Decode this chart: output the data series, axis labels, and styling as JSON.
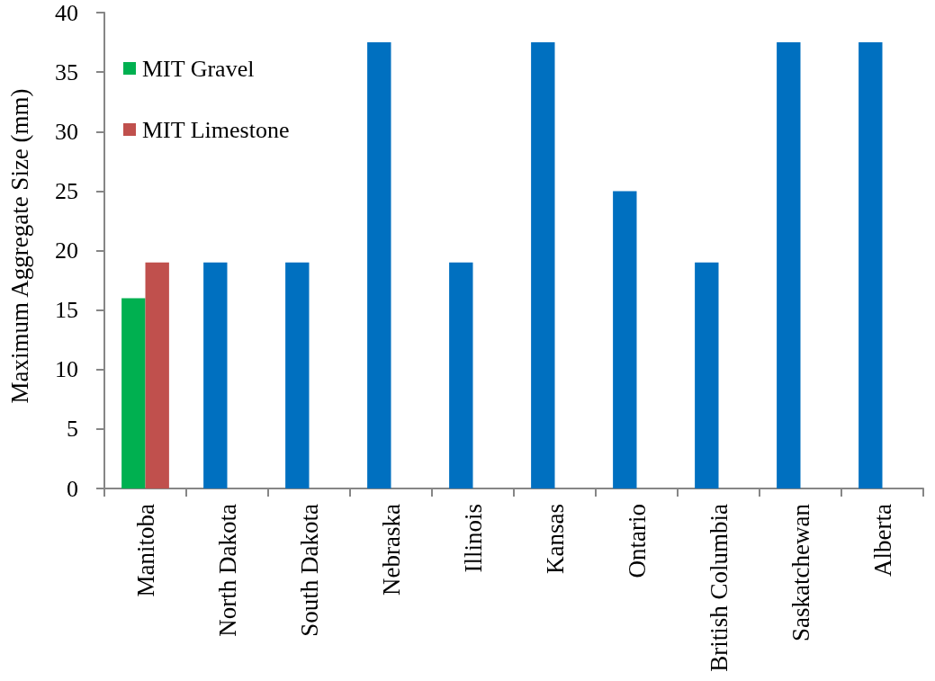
{
  "chart_data": {
    "type": "bar",
    "ylabel": "Maximum Aggregate Size (mm)",
    "categories": [
      "Manitoba",
      "North Dakota",
      "South Dakota",
      "Nebraska",
      "Illinois",
      "Kansas",
      "Ontario",
      "British Columbia",
      "Saskatchewan",
      "Alberta"
    ],
    "series": [
      {
        "name": "MIT Gravel",
        "color": "#00b050",
        "values": [
          16,
          null,
          null,
          null,
          null,
          null,
          null,
          null,
          null,
          null
        ]
      },
      {
        "name": "MIT Limestone",
        "color": "#c0504d",
        "values": [
          19,
          null,
          null,
          null,
          null,
          null,
          null,
          null,
          null,
          null
        ]
      },
      {
        "color": "#0070c0",
        "values": [
          null,
          19,
          19,
          37.5,
          19,
          37.5,
          25,
          19,
          37.5,
          37.5
        ]
      }
    ],
    "ylim": [
      0,
      40
    ],
    "yticks": [
      0,
      5,
      10,
      15,
      20,
      25,
      30,
      35,
      40
    ],
    "legend": "top left"
  }
}
